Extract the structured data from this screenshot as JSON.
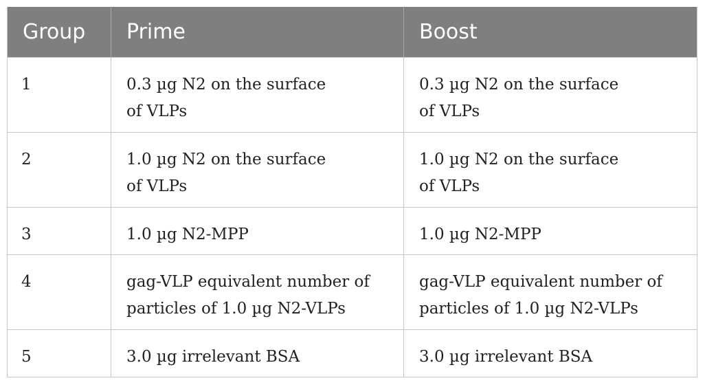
{
  "table": {
    "headers": [
      "Group",
      "Prime",
      "Boost"
    ],
    "rows": [
      {
        "group": "1",
        "prime": [
          "0.3 µg N2 on the surface",
          "of VLPs"
        ],
        "boost": [
          "0.3 µg N2 on the surface",
          "of VLPs"
        ]
      },
      {
        "group": "2",
        "prime": [
          "1.0 µg N2 on the surface",
          "of VLPs"
        ],
        "boost": [
          "1.0 µg N2 on the surface",
          "of VLPs"
        ]
      },
      {
        "group": "3",
        "prime": [
          "1.0 µg N2-MPP"
        ],
        "boost": [
          "1.0 µg N2-MPP"
        ]
      },
      {
        "group": "4",
        "prime": [
          "gag-VLP equivalent number of",
          "particles of 1.0 µg N2-VLPs"
        ],
        "boost": [
          "gag-VLP equivalent number of",
          "particles of 1.0 µg N2-VLPs"
        ]
      },
      {
        "group": "5",
        "prime": [
          "3.0 µg irrelevant BSA"
        ],
        "boost": [
          "3.0 µg irrelevant BSA"
        ]
      }
    ]
  }
}
